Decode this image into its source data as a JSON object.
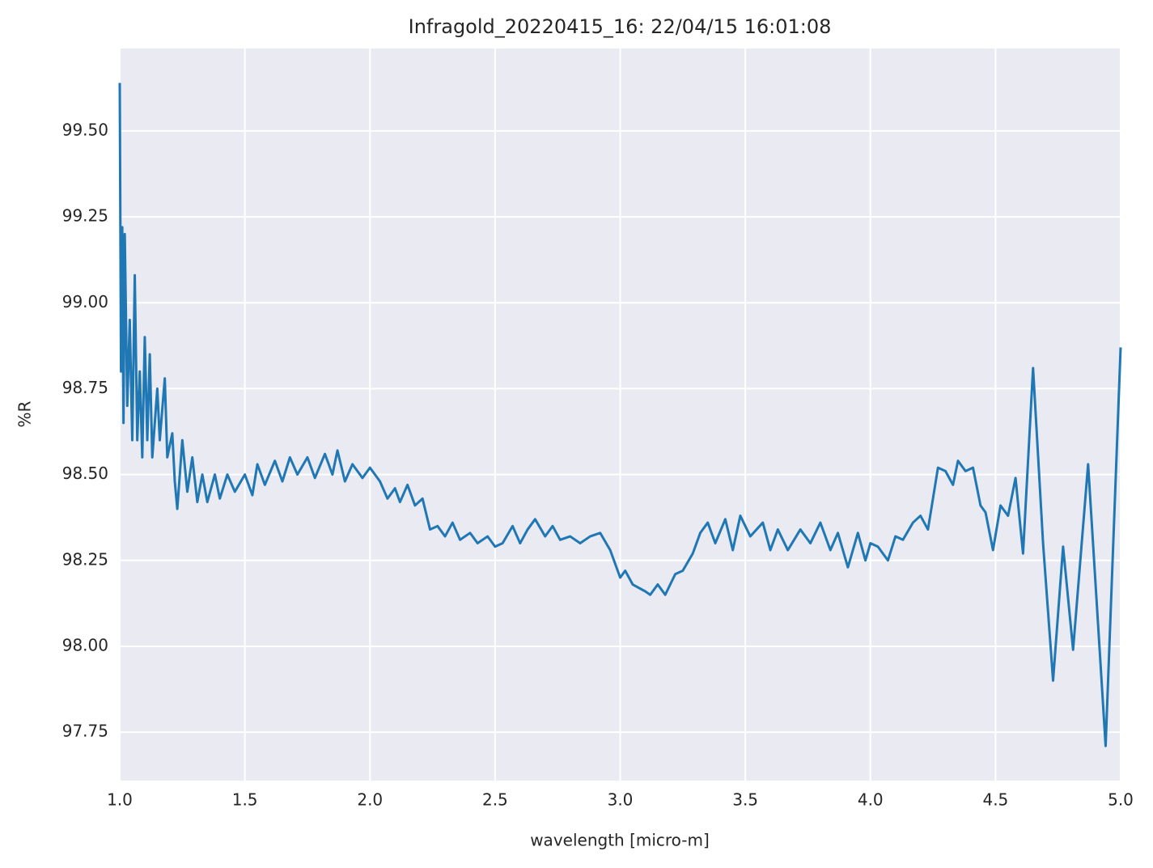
{
  "chart_data": {
    "type": "line",
    "title": "Infragold_20220415_16:  22/04/15 16:01:08",
    "xlabel": "wavelength [micro-m]",
    "ylabel": "%R",
    "xlim": [
      1,
      5
    ],
    "ylim": [
      97.609,
      99.74
    ],
    "xticks": [
      {
        "value": 1,
        "label": "1.0"
      },
      1.5,
      {
        "value": 2,
        "label": "2.0"
      },
      2.5,
      {
        "value": 3,
        "label": "3.0"
      },
      3.5,
      {
        "value": 4,
        "label": "4.0"
      },
      4.5,
      {
        "value": 5,
        "label": "5.0"
      }
    ],
    "yticks": [
      97.75,
      {
        "value": 98,
        "label": "98.00"
      },
      98.25,
      {
        "value": 98.5,
        "label": "98.50"
      },
      98.75,
      {
        "value": 99,
        "label": "99.00"
      },
      99.25,
      {
        "value": 99.5,
        "label": "99.50"
      }
    ],
    "grid": true,
    "series": [
      {
        "color": "#1f77b4",
        "x": [
          1.0,
          1.005,
          1.01,
          1.015,
          1.02,
          1.03,
          1.04,
          1.05,
          1.06,
          1.07,
          1.08,
          1.09,
          1.1,
          1.11,
          1.12,
          1.13,
          1.15,
          1.16,
          1.18,
          1.19,
          1.21,
          1.22,
          1.23,
          1.25,
          1.27,
          1.29,
          1.31,
          1.33,
          1.35,
          1.38,
          1.4,
          1.43,
          1.46,
          1.5,
          1.53,
          1.55,
          1.58,
          1.62,
          1.65,
          1.68,
          1.71,
          1.75,
          1.78,
          1.82,
          1.85,
          1.87,
          1.9,
          1.93,
          1.97,
          2.0,
          2.04,
          2.07,
          2.1,
          2.12,
          2.15,
          2.18,
          2.21,
          2.24,
          2.27,
          2.3,
          2.33,
          2.36,
          2.4,
          2.43,
          2.47,
          2.5,
          2.53,
          2.57,
          2.6,
          2.63,
          2.66,
          2.7,
          2.73,
          2.76,
          2.8,
          2.84,
          2.88,
          2.92,
          2.96,
          3.0,
          3.02,
          3.05,
          3.1,
          3.12,
          3.15,
          3.18,
          3.22,
          3.25,
          3.29,
          3.32,
          3.35,
          3.38,
          3.42,
          3.45,
          3.48,
          3.52,
          3.57,
          3.6,
          3.63,
          3.67,
          3.72,
          3.76,
          3.8,
          3.84,
          3.87,
          3.91,
          3.95,
          3.98,
          4.0,
          4.03,
          4.07,
          4.1,
          4.13,
          4.17,
          4.2,
          4.23,
          4.27,
          4.3,
          4.33,
          4.35,
          4.38,
          4.41,
          4.44,
          4.46,
          4.49,
          4.52,
          4.55,
          4.58,
          4.61,
          4.65,
          4.69,
          4.73,
          4.77,
          4.81,
          4.87,
          4.94,
          5.0
        ],
        "values": [
          99.64,
          98.8,
          99.22,
          98.65,
          99.2,
          98.7,
          98.95,
          98.6,
          99.08,
          98.6,
          98.8,
          98.55,
          98.9,
          98.6,
          98.85,
          98.55,
          98.75,
          98.6,
          98.78,
          98.55,
          98.62,
          98.48,
          98.4,
          98.6,
          98.45,
          98.55,
          98.42,
          98.5,
          98.42,
          98.5,
          98.43,
          98.5,
          98.45,
          98.5,
          98.44,
          98.53,
          98.47,
          98.54,
          98.48,
          98.55,
          98.5,
          98.55,
          98.49,
          98.56,
          98.5,
          98.57,
          98.48,
          98.53,
          98.49,
          98.52,
          98.48,
          98.43,
          98.46,
          98.42,
          98.47,
          98.41,
          98.43,
          98.34,
          98.35,
          98.32,
          98.36,
          98.31,
          98.33,
          98.3,
          98.32,
          98.29,
          98.3,
          98.35,
          98.3,
          98.34,
          98.37,
          98.32,
          98.35,
          98.31,
          98.32,
          98.3,
          98.32,
          98.33,
          98.28,
          98.2,
          98.22,
          98.18,
          98.16,
          98.15,
          98.18,
          98.15,
          98.21,
          98.22,
          98.27,
          98.33,
          98.36,
          98.3,
          98.37,
          98.28,
          98.38,
          98.32,
          98.36,
          98.28,
          98.34,
          98.28,
          98.34,
          98.3,
          98.36,
          98.28,
          98.33,
          98.23,
          98.33,
          98.25,
          98.3,
          98.29,
          98.25,
          98.32,
          98.31,
          98.36,
          98.38,
          98.34,
          98.52,
          98.51,
          98.47,
          98.54,
          98.51,
          98.52,
          98.41,
          98.39,
          98.28,
          98.41,
          98.38,
          98.49,
          98.27,
          98.81,
          98.3,
          97.9,
          98.29,
          97.99,
          98.53,
          97.71,
          98.87
        ]
      }
    ]
  }
}
